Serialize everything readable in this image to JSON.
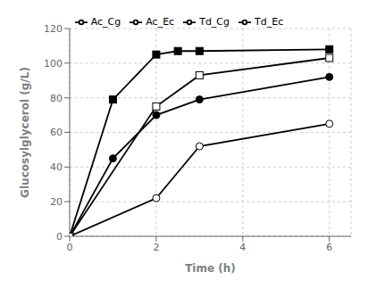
{
  "chart_data": {
    "type": "line",
    "title": "",
    "xlabel": "Time (h)",
    "ylabel": "Glucosylglycerol (g/L)",
    "xlim": [
      0,
      6.5
    ],
    "ylim": [
      0,
      120
    ],
    "xticks": [
      0,
      2,
      4,
      6
    ],
    "yticks": [
      0,
      20,
      40,
      60,
      80,
      100,
      120
    ],
    "grid": true,
    "legend": "top",
    "series": [
      {
        "name": "Ac_Ec",
        "color": "black",
        "marker": "square",
        "x": [
          0,
          1,
          2,
          2.5,
          3,
          6
        ],
        "values": [
          0,
          79,
          105,
          107,
          107,
          108
        ]
      },
      {
        "name": "Td_Ec",
        "color": "black",
        "marker": "circle",
        "x": [
          0,
          1,
          2,
          3,
          6
        ],
        "values": [
          0,
          45,
          70,
          79,
          92
        ]
      },
      {
        "name": "Ac_Cg",
        "color": "black",
        "marker": "square-open",
        "x": [
          0,
          2,
          3,
          6
        ],
        "values": [
          0,
          75,
          93,
          103
        ]
      },
      {
        "name": "Td_Cg",
        "color": "black",
        "marker": "circle-open",
        "x": [
          0,
          2,
          3,
          6
        ],
        "values": [
          0,
          22,
          52,
          65
        ]
      }
    ]
  }
}
